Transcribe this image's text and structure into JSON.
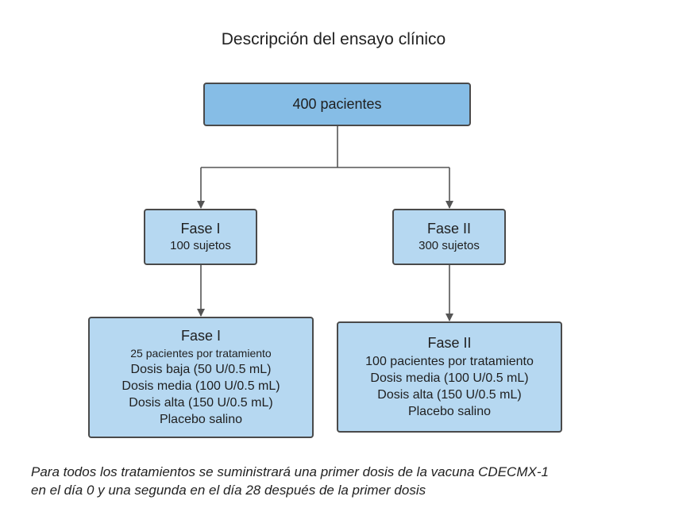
{
  "title": "Descripción del ensayo clínico",
  "root": {
    "label": "400 pacientes"
  },
  "phase1": {
    "title": "Fase I",
    "subtitle": "100 sujetos"
  },
  "phase2": {
    "title": "Fase II",
    "subtitle": "300 sujetos"
  },
  "detail1": {
    "title": "Fase I",
    "lines": [
      "25 pacientes por tratamiento",
      "Dosis baja (50 U/0.5 mL)",
      "Dosis media (100 U/0.5 mL)",
      "Dosis alta (150 U/0.5 mL)",
      "Placebo salino"
    ]
  },
  "detail2": {
    "title": "Fase II",
    "lines": [
      "100 pacientes por tratamiento",
      "Dosis media (100 U/0.5 mL)",
      "Dosis alta (150 U/0.5 mL)",
      "Placebo salino"
    ]
  },
  "footnote": {
    "line1": "Para todos los tratamientos se suministrará una primer dosis de la vacuna CDECMX-1",
    "line2": "en el día 0 y una segunda en el día 28 después de la primer dosis"
  },
  "colors": {
    "root_fill": "#86bde6",
    "box_fill": "#b6d8f1",
    "border": "#4a4a4a",
    "connector": "#555555"
  }
}
